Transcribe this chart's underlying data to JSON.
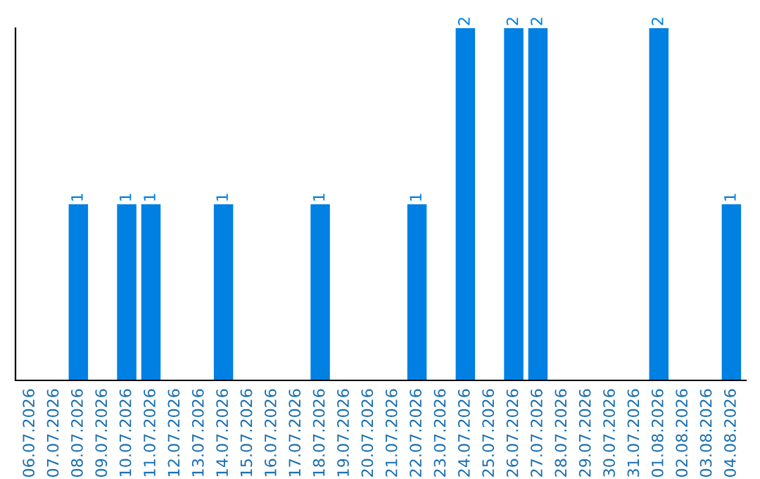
{
  "chart_data": {
    "type": "bar",
    "categories": [
      "06.07.2026",
      "07.07.2026",
      "08.07.2026",
      "09.07.2026",
      "10.07.2026",
      "11.07.2026",
      "12.07.2026",
      "13.07.2026",
      "14.07.2026",
      "15.07.2026",
      "16.07.2026",
      "17.07.2026",
      "18.07.2026",
      "19.07.2026",
      "20.07.2026",
      "21.07.2026",
      "22.07.2026",
      "23.07.2026",
      "24.07.2026",
      "25.07.2026",
      "26.07.2026",
      "27.07.2026",
      "28.07.2026",
      "29.07.2026",
      "30.07.2026",
      "31.07.2026",
      "01.08.2026",
      "02.08.2026",
      "03.08.2026",
      "04.08.2026"
    ],
    "values": [
      0,
      0,
      1,
      0,
      1,
      1,
      0,
      0,
      1,
      0,
      0,
      0,
      1,
      0,
      0,
      0,
      1,
      0,
      2,
      0,
      2,
      2,
      0,
      0,
      0,
      0,
      2,
      0,
      0,
      1
    ],
    "value_labels": [
      null,
      null,
      "1",
      null,
      "1",
      "1",
      null,
      null,
      "1",
      null,
      null,
      null,
      "1",
      null,
      null,
      null,
      "1",
      null,
      "2",
      null,
      "2",
      "2",
      null,
      null,
      null,
      null,
      "2",
      null,
      null,
      "1"
    ],
    "color": "#0080e3",
    "ylim": [
      0,
      2
    ],
    "tick_labels": "x",
    "grid": false,
    "legend": false
  }
}
